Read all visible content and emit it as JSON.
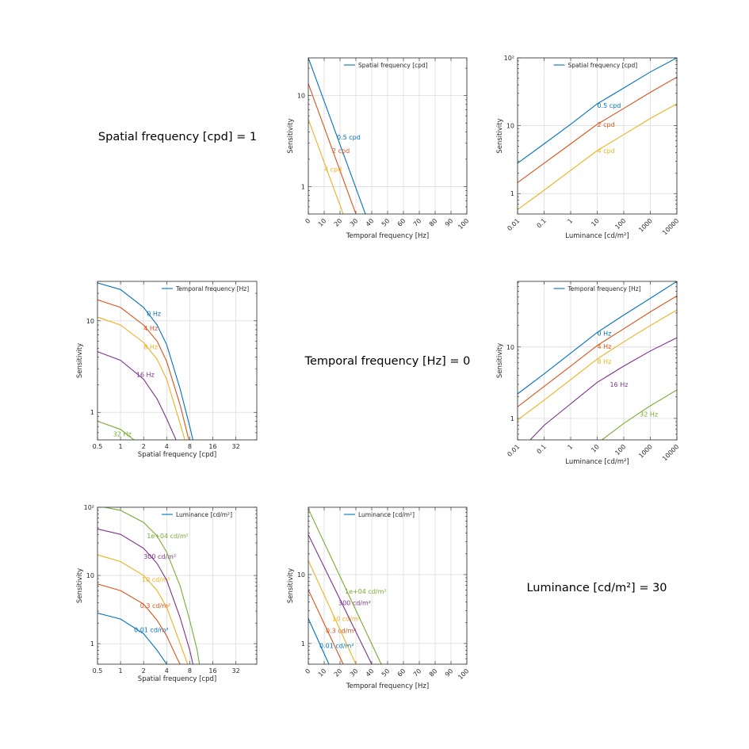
{
  "fixed_labels": [
    "Spatial frequency [cpd] = 1",
    "Temporal frequency [Hz] = 0",
    "Luminance [cd/m²] = 30"
  ],
  "colors": [
    "#0072BD",
    "#D95319",
    "#EDB120",
    "#7E2F8E",
    "#77AC30"
  ],
  "chart_data": [
    {
      "id": "sens-vs-temporal-1",
      "type": "line",
      "xlabel": "Temporal frequency [Hz]",
      "ylabel": "Sensitivity",
      "xscale": "linear",
      "yscale": "log",
      "xlim": [
        0,
        100
      ],
      "ylim": [
        0.5,
        26
      ],
      "xticks": [
        0,
        10,
        20,
        30,
        40,
        50,
        60,
        70,
        80,
        90,
        100
      ],
      "xticklabels": [
        "0",
        "10",
        "20",
        "30",
        "40",
        "50",
        "60",
        "70",
        "80",
        "90",
        "100"
      ],
      "yticks": [
        1,
        10
      ],
      "yticklabels": [
        "1",
        "10"
      ],
      "legend": {
        "title": "Spatial frequency [cpd]",
        "placement": "top-center"
      },
      "series": [
        {
          "name": "0.5 cpd",
          "x": [
            0,
            36
          ],
          "y": [
            26,
            0.5
          ],
          "label_at": [
            18,
            3.5
          ]
        },
        {
          "name": "2 cpd",
          "x": [
            0,
            30
          ],
          "y": [
            13.5,
            0.5
          ],
          "label_at": [
            15,
            2.5
          ]
        },
        {
          "name": "4 cpd",
          "x": [
            0,
            22
          ],
          "y": [
            5.5,
            0.5
          ],
          "label_at": [
            10,
            1.55
          ]
        }
      ]
    },
    {
      "id": "sens-vs-luminance-1",
      "type": "line",
      "xlabel": "Luminance [cd/m²]",
      "ylabel": "Sensitivity",
      "xscale": "log",
      "yscale": "log",
      "xlim": [
        0.01,
        10000
      ],
      "ylim": [
        0.5,
        100
      ],
      "xticks": [
        0.01,
        0.1,
        1,
        10,
        100,
        1000,
        10000
      ],
      "xticklabels": [
        "0.01",
        "0.1",
        "1",
        "10",
        "100",
        "1000",
        "10000"
      ],
      "yticks": [
        1,
        10,
        100
      ],
      "yticklabels": [
        "1",
        "10",
        "10²"
      ],
      "legend": {
        "title": "Spatial frequency [cpd]",
        "placement": "top-center"
      },
      "series": [
        {
          "name": "0.5 cpd",
          "x": [
            0.01,
            0.1,
            1,
            10,
            100,
            1000,
            10000
          ],
          "y": [
            2.8,
            5.4,
            10.5,
            21,
            36,
            62,
            100
          ],
          "label_at": [
            10,
            20
          ]
        },
        {
          "name": "2 cpd",
          "x": [
            0.01,
            0.1,
            1,
            10,
            100,
            1000,
            10000
          ],
          "y": [
            1.45,
            2.8,
            5.4,
            10.5,
            18,
            31,
            52
          ],
          "label_at": [
            10,
            10.5
          ]
        },
        {
          "name": "4 cpd",
          "x": [
            0.01,
            0.1,
            1,
            10,
            100,
            1000,
            10000
          ],
          "y": [
            0.58,
            1.12,
            2.2,
            4.3,
            7.4,
            12.8,
            21
          ],
          "label_at": [
            10,
            4.3
          ]
        }
      ]
    },
    {
      "id": "sens-vs-spatial-2",
      "type": "line",
      "xlabel": "Spatial frequency [cpd]",
      "ylabel": "Sensitivity",
      "xscale": "log2",
      "yscale": "log",
      "xlim": [
        0.5,
        60
      ],
      "ylim": [
        0.5,
        27
      ],
      "xticks": [
        0.5,
        1,
        2,
        4,
        8,
        16,
        32
      ],
      "xticklabels": [
        "0.5",
        "1",
        "2",
        "4",
        "8",
        "16",
        "32"
      ],
      "yticks": [
        1,
        10
      ],
      "yticklabels": [
        "1",
        "10"
      ],
      "legend": {
        "title": "Temporal frequency [Hz]",
        "placement": "top-right"
      },
      "series": [
        {
          "name": "0 Hz",
          "x": [
            0.5,
            1,
            2,
            3,
            4,
            6,
            8,
            8.8
          ],
          "y": [
            26,
            22,
            14,
            9,
            5.5,
            1.8,
            0.7,
            0.5
          ],
          "label_at": [
            2.2,
            12
          ]
        },
        {
          "name": "4 Hz",
          "x": [
            0.5,
            1,
            2,
            3,
            4,
            6,
            7.8
          ],
          "y": [
            17,
            14,
            9,
            6,
            3.6,
            1.2,
            0.5
          ],
          "label_at": [
            2,
            8.3
          ]
        },
        {
          "name": "8 Hz",
          "x": [
            0.5,
            1,
            2,
            3,
            4,
            6,
            6.9
          ],
          "y": [
            11,
            9,
            5.8,
            3.8,
            2.3,
            0.75,
            0.5
          ],
          "label_at": [
            2,
            5.2
          ]
        },
        {
          "name": "16 Hz",
          "x": [
            0.5,
            1,
            2,
            3,
            4,
            5.3
          ],
          "y": [
            4.6,
            3.7,
            2.3,
            1.4,
            0.85,
            0.5
          ],
          "label_at": [
            1.6,
            2.6
          ]
        },
        {
          "name": "32 Hz",
          "x": [
            0.5,
            1,
            1.5
          ],
          "y": [
            0.8,
            0.65,
            0.5
          ],
          "label_at": [
            0.8,
            0.58
          ]
        }
      ]
    },
    {
      "id": "sens-vs-luminance-2",
      "type": "line",
      "xlabel": "Luminance [cd/m²]",
      "ylabel": "Sensitivity",
      "xscale": "log",
      "yscale": "log",
      "xlim": [
        0.01,
        10000
      ],
      "ylim": [
        0.5,
        83
      ],
      "xticks": [
        0.01,
        0.1,
        1,
        10,
        100,
        1000,
        10000
      ],
      "xticklabels": [
        "0.01",
        "0.1",
        "1",
        "10",
        "100",
        "1000",
        "10000"
      ],
      "yticks": [
        1,
        10
      ],
      "yticklabels": [
        "1",
        "10"
      ],
      "legend": {
        "title": "Temporal frequency [Hz]",
        "placement": "top-center"
      },
      "series": [
        {
          "name": "0 Hz",
          "x": [
            0.01,
            0.1,
            1,
            10,
            100,
            1000,
            10000
          ],
          "y": [
            2.2,
            4.2,
            8.2,
            16,
            28,
            48,
            83
          ],
          "label_at": [
            10,
            15.5
          ]
        },
        {
          "name": "4 Hz",
          "x": [
            0.01,
            0.1,
            1,
            10,
            100,
            1000,
            10000
          ],
          "y": [
            1.45,
            2.8,
            5.4,
            10.5,
            18,
            31,
            52
          ],
          "label_at": [
            10,
            10.2
          ]
        },
        {
          "name": "8 Hz",
          "x": [
            0.01,
            0.1,
            1,
            10,
            100,
            1000,
            10000
          ],
          "y": [
            0.95,
            1.8,
            3.5,
            6.8,
            11.8,
            20,
            33
          ],
          "label_at": [
            10,
            6.3
          ]
        },
        {
          "name": "16 Hz",
          "x": [
            0.03,
            0.1,
            1,
            10,
            100,
            1000,
            10000
          ],
          "y": [
            0.5,
            0.8,
            1.6,
            3.2,
            5.4,
            8.8,
            13.5
          ],
          "label_at": [
            30,
            3
          ]
        },
        {
          "name": "32 Hz",
          "x": [
            15,
            100,
            400,
            1000,
            10000
          ],
          "y": [
            0.5,
            0.85,
            1.2,
            1.5,
            2.5
          ],
          "label_at": [
            400,
            1.15
          ]
        }
      ]
    },
    {
      "id": "sens-vs-spatial-3",
      "type": "line",
      "xlabel": "Spatial frequency [cpd]",
      "ylabel": "Sensitivity",
      "xscale": "log2",
      "yscale": "log",
      "xlim": [
        0.5,
        60
      ],
      "ylim": [
        0.5,
        100
      ],
      "xticks": [
        0.5,
        1,
        2,
        4,
        8,
        16,
        32
      ],
      "xticklabels": [
        "0.5",
        "1",
        "2",
        "4",
        "8",
        "16",
        "32"
      ],
      "yticks": [
        1,
        10,
        100
      ],
      "yticklabels": [
        "1",
        "10",
        "10²"
      ],
      "legend": {
        "title": "Luminance [cd/m²]",
        "placement": "top-right"
      },
      "series": [
        {
          "name": "0.01 cd/m²",
          "x": [
            0.5,
            1,
            2,
            3,
            4
          ],
          "y": [
            2.8,
            2.3,
            1.4,
            0.8,
            0.5
          ],
          "label_at": [
            1.5,
            1.6
          ]
        },
        {
          "name": "0.3 cd/m²",
          "x": [
            0.5,
            1,
            2,
            3,
            4,
            5.5,
            6
          ],
          "y": [
            7.5,
            6,
            3.8,
            2.2,
            1.3,
            0.6,
            0.5
          ],
          "label_at": [
            1.8,
            3.6
          ]
        },
        {
          "name": "10 cd/m²",
          "x": [
            0.5,
            1,
            2,
            3,
            4,
            6,
            7.5
          ],
          "y": [
            20,
            16,
            10,
            6,
            3.4,
            1.0,
            0.5
          ],
          "label_at": [
            1.9,
            8.8
          ]
        },
        {
          "name": "300 cd/m²",
          "x": [
            0.5,
            1,
            2,
            3,
            4,
            6,
            8,
            8.8
          ],
          "y": [
            48,
            40,
            25,
            15,
            8.5,
            2.4,
            0.8,
            0.5
          ],
          "label_at": [
            2,
            19
          ]
        },
        {
          "name": "1e+04 cd/m²",
          "x": [
            0.5,
            1,
            2,
            3,
            4,
            6,
            8,
            10,
            10.7
          ],
          "y": [
            105,
            90,
            60,
            38,
            22,
            7,
            2.2,
            0.8,
            0.5
          ],
          "label_at": [
            2.2,
            38
          ]
        }
      ]
    },
    {
      "id": "sens-vs-temporal-3",
      "type": "line",
      "xlabel": "Temporal frequency [Hz]",
      "ylabel": "Sensitivity",
      "xscale": "linear",
      "yscale": "log",
      "xlim": [
        0,
        100
      ],
      "ylim": [
        0.5,
        95
      ],
      "xticks": [
        0,
        10,
        20,
        30,
        40,
        50,
        60,
        70,
        80,
        90,
        100
      ],
      "xticklabels": [
        "0",
        "10",
        "20",
        "30",
        "40",
        "50",
        "60",
        "70",
        "80",
        "90",
        "100"
      ],
      "yticks": [
        1,
        10
      ],
      "yticklabels": [
        "1",
        "10"
      ],
      "legend": {
        "title": "Luminance [cd/m²]",
        "placement": "top-center"
      },
      "series": [
        {
          "name": "0.01 cd/m²",
          "x": [
            0,
            13
          ],
          "y": [
            2.3,
            0.5
          ],
          "label_at": [
            7,
            0.93
          ]
        },
        {
          "name": "0.3 cd/m²",
          "x": [
            0,
            22
          ],
          "y": [
            6,
            0.5
          ],
          "label_at": [
            11,
            1.55
          ]
        },
        {
          "name": "10 cd/m²",
          "x": [
            0,
            30
          ],
          "y": [
            16,
            0.5
          ],
          "label_at": [
            15,
            2.3
          ]
        },
        {
          "name": "300 cd/m²",
          "x": [
            0,
            40
          ],
          "y": [
            38,
            0.5
          ],
          "label_at": [
            19,
            3.9
          ]
        },
        {
          "name": "1e+04 cd/m²",
          "x": [
            0,
            46
          ],
          "y": [
            90,
            0.5
          ],
          "label_at": [
            23,
            5.7
          ]
        }
      ]
    }
  ]
}
